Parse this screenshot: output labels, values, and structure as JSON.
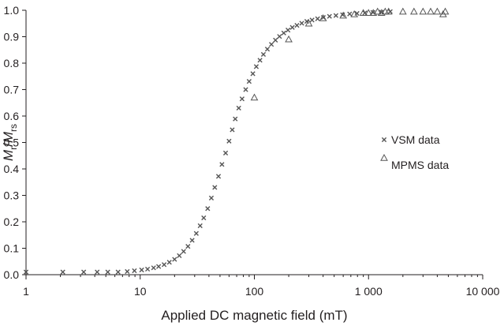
{
  "chart_data": {
    "type": "scatter",
    "title": "",
    "xlabel": "Applied DC magnetic field (mT)",
    "ylabel": {
      "M1": "M",
      "sub1": "r",
      "slash": "/",
      "M2": "M",
      "sub2": "rs"
    },
    "xscale": "log",
    "xlim": [
      1,
      10000
    ],
    "ylim": [
      0,
      1
    ],
    "x_ticks": [
      {
        "value": 1,
        "label": "1"
      },
      {
        "value": 10,
        "label": "10"
      },
      {
        "value": 100,
        "label": "100"
      },
      {
        "value": 1000,
        "label": "1 000"
      },
      {
        "value": 10000,
        "label": "10 000"
      }
    ],
    "y_ticks": [
      {
        "value": 0.0,
        "label": "0.0"
      },
      {
        "value": 0.1,
        "label": "0.1"
      },
      {
        "value": 0.2,
        "label": "0.2"
      },
      {
        "value": 0.3,
        "label": "0.3"
      },
      {
        "value": 0.4,
        "label": "0.4"
      },
      {
        "value": 0.5,
        "label": "0.5"
      },
      {
        "value": 0.6,
        "label": "0.6"
      },
      {
        "value": 0.7,
        "label": "0.7"
      },
      {
        "value": 0.8,
        "label": "0.8"
      },
      {
        "value": 0.9,
        "label": "0.9"
      },
      {
        "value": 1.0,
        "label": "1.0"
      }
    ],
    "grid": false,
    "legend_position": "right",
    "series": [
      {
        "name": "VSM data",
        "marker": "x",
        "color": "#555555",
        "points": [
          [
            1.0,
            0.01
          ],
          [
            2.1,
            0.01
          ],
          [
            3.2,
            0.01
          ],
          [
            4.2,
            0.01
          ],
          [
            5.2,
            0.01
          ],
          [
            6.4,
            0.01
          ],
          [
            7.7,
            0.012
          ],
          [
            8.9,
            0.015
          ],
          [
            10.3,
            0.018
          ],
          [
            11.6,
            0.021
          ],
          [
            13.1,
            0.026
          ],
          [
            14.5,
            0.031
          ],
          [
            16.2,
            0.038
          ],
          [
            18.0,
            0.047
          ],
          [
            20.0,
            0.058
          ],
          [
            22.0,
            0.072
          ],
          [
            24.0,
            0.088
          ],
          [
            26.2,
            0.107
          ],
          [
            28.5,
            0.13
          ],
          [
            31.0,
            0.156
          ],
          [
            33.5,
            0.185
          ],
          [
            36.0,
            0.215
          ],
          [
            39.0,
            0.25
          ],
          [
            42.0,
            0.29
          ],
          [
            45.0,
            0.33
          ],
          [
            48.5,
            0.372
          ],
          [
            52.0,
            0.417
          ],
          [
            56.0,
            0.46
          ],
          [
            60.0,
            0.505
          ],
          [
            64.0,
            0.548
          ],
          [
            68.0,
            0.589
          ],
          [
            73.0,
            0.63
          ],
          [
            78.0,
            0.665
          ],
          [
            84.0,
            0.7
          ],
          [
            90.0,
            0.731
          ],
          [
            97.0,
            0.76
          ],
          [
            104.0,
            0.787
          ],
          [
            112.0,
            0.811
          ],
          [
            120.0,
            0.833
          ],
          [
            130.0,
            0.853
          ],
          [
            141.0,
            0.871
          ],
          [
            153.0,
            0.887
          ],
          [
            166.0,
            0.901
          ],
          [
            181.0,
            0.914
          ],
          [
            197.0,
            0.925
          ],
          [
            215.0,
            0.935
          ],
          [
            236.0,
            0.943
          ],
          [
            260.0,
            0.951
          ],
          [
            288.0,
            0.958
          ],
          [
            320.0,
            0.963
          ],
          [
            358.0,
            0.968
          ],
          [
            402.0,
            0.973
          ],
          [
            455.0,
            0.977
          ],
          [
            518.0,
            0.98
          ],
          [
            593.0,
            0.983
          ],
          [
            683.0,
            0.986
          ],
          [
            793.0,
            0.988
          ],
          [
            928.0,
            0.99
          ],
          [
            1093.0,
            0.992
          ],
          [
            1296.0,
            0.993
          ],
          [
            1550.0,
            0.995
          ]
        ]
      },
      {
        "name": "MPMS data",
        "marker": "triangle",
        "color": "#555555",
        "points": [
          [
            100.0,
            0.67
          ],
          [
            200.0,
            0.89
          ],
          [
            300.0,
            0.95
          ],
          [
            400.0,
            0.97
          ],
          [
            600.0,
            0.98
          ],
          [
            750.0,
            0.985
          ],
          [
            900.0,
            0.99
          ],
          [
            1000.0,
            0.99
          ],
          [
            1100.0,
            0.99
          ],
          [
            1200.0,
            0.995
          ],
          [
            1300.0,
            0.99
          ],
          [
            1400.0,
            0.995
          ],
          [
            1500.0,
            0.995
          ],
          [
            2000.0,
            0.995
          ],
          [
            2500.0,
            0.995
          ],
          [
            3000.0,
            0.995
          ],
          [
            3500.0,
            0.995
          ],
          [
            4000.0,
            0.995
          ],
          [
            4500.0,
            0.985
          ],
          [
            4700.0,
            0.995
          ]
        ]
      }
    ]
  }
}
